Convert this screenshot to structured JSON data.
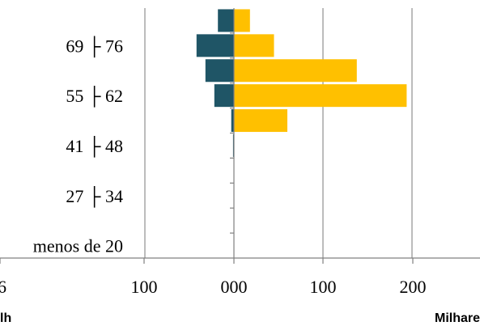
{
  "chart_data": {
    "type": "bar",
    "orientation": "horizontal",
    "stacked": false,
    "y_categories_visible": [
      "69 ├ 76",
      "55 ├ 62",
      "41 ├ 48",
      "27 ├ 34",
      "menos de 20"
    ],
    "x_tick_labels": [
      "6",
      "100",
      "000",
      "100",
      "200"
    ],
    "xlabel_left": "lh",
    "xlabel_right": "Milhare",
    "grid": true,
    "gridlines_x": [
      -100,
      100,
      200
    ],
    "xlim": [
      -200,
      270
    ],
    "bins": [
      {
        "label": "menos de 20"
      },
      {
        "label": ""
      },
      {
        "label": "27 ├ 34"
      },
      {
        "label": ""
      },
      {
        "label": "41 ├ 48"
      },
      {
        "label": ""
      },
      {
        "label": "55 ├ 62"
      },
      {
        "label": ""
      },
      {
        "label": "69 ├ 76"
      },
      {
        "label": ""
      }
    ],
    "series": [
      {
        "color": "#1f5566",
        "values": [
          0,
          0,
          0,
          0,
          -1,
          -3,
          -22,
          -32,
          -42,
          -18
        ]
      },
      {
        "color": "#ffc000",
        "values": [
          0,
          0,
          0,
          0,
          0,
          60,
          194,
          138,
          45,
          18
        ]
      }
    ]
  }
}
